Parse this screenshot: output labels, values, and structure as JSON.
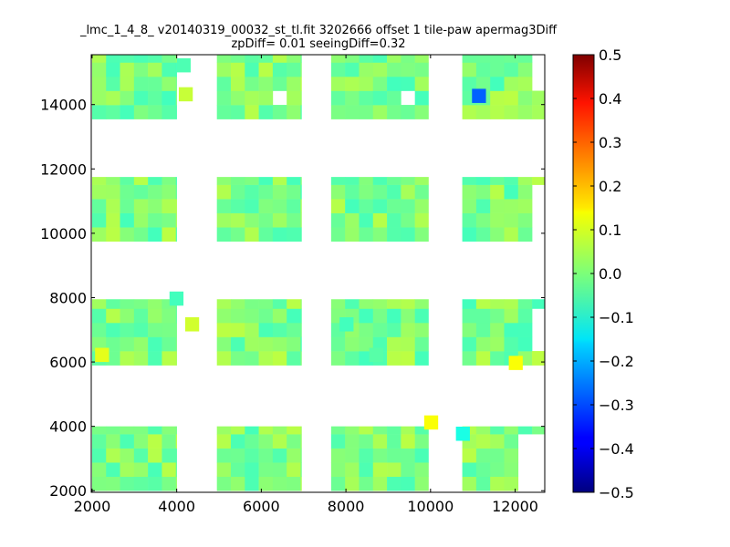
{
  "chart_data": {
    "type": "heatmap",
    "title_lines": [
      "_lmc_1_4_8_ v20140319_00032_st_tl.fit 3202666 offset 1 tile-paw apermag3Diff",
      "zpDiff= 0.01 seeingDiff=0.32"
    ],
    "xlim": [
      1980,
      12700
    ],
    "ylim": [
      1950,
      15550
    ],
    "x_ticks": [
      2000,
      4000,
      6000,
      8000,
      10000,
      12000
    ],
    "y_ticks": [
      2000,
      4000,
      6000,
      8000,
      10000,
      12000,
      14000
    ],
    "colorbar": {
      "vmin": -0.5,
      "vmax": 0.5,
      "colormap": "jet",
      "ticks": [
        "-0.5",
        "-0.4",
        "-0.3",
        "-0.2",
        "-0.1",
        "0.0",
        "0.1",
        "0.2",
        "0.3",
        "0.4",
        "0.5"
      ]
    },
    "cell_size": [
      330,
      440
    ],
    "columns": [
      [
        2000,
        4000
      ],
      [
        4950,
        6950
      ],
      [
        7650,
        9950
      ],
      [
        10750,
        12700
      ]
    ],
    "rows": [
      [
        2000,
        4000
      ],
      [
        5900,
        7950
      ],
      [
        9750,
        11750
      ],
      [
        13550,
        15550
      ]
    ],
    "cells_note": "per-cell apermag3Diff values (mostly near 0.0)",
    "highlight_cells": [
      {
        "x": 4000,
        "y": 15000,
        "value": -0.05
      },
      {
        "x": 10980,
        "y": 14050,
        "value": -0.28
      },
      {
        "x": 10600,
        "y": 3550,
        "value": -0.1
      },
      {
        "x": 9850,
        "y": 3900,
        "value": 0.12
      },
      {
        "x": 11850,
        "y": 5750,
        "value": 0.12
      },
      {
        "x": 2070,
        "y": 6000,
        "value": 0.1
      },
      {
        "x": 4200,
        "y": 6950,
        "value": 0.08
      },
      {
        "x": 3830,
        "y": 7750,
        "value": -0.06
      },
      {
        "x": 7850,
        "y": 6950,
        "value": -0.06
      },
      {
        "x": 8550,
        "y": 6000,
        "value": -0.04
      },
      {
        "x": 4050,
        "y": 14100,
        "value": 0.07
      }
    ]
  }
}
